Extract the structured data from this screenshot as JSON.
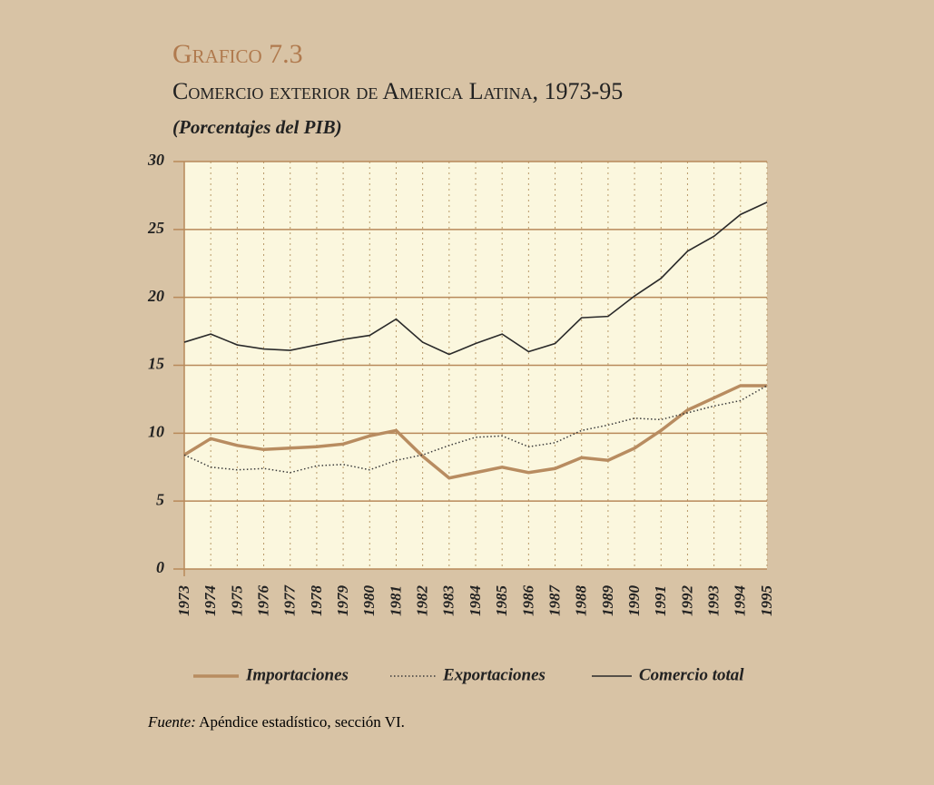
{
  "chart_data": {
    "type": "line",
    "title": "Grafico 7.3",
    "subtitle": "Comercio exterior de America Latina, 1973-95",
    "unit_note": "(Porcentajes del PIB)",
    "categories": [
      "1973",
      "1974",
      "1975",
      "1976",
      "1977",
      "1978",
      "1979",
      "1980",
      "1981",
      "1982",
      "1983",
      "1984",
      "1985",
      "1986",
      "1987",
      "1988",
      "1989",
      "1990",
      "1991",
      "1992",
      "1993",
      "1994",
      "1995"
    ],
    "series": [
      {
        "name": "Importaciones",
        "color": "#b88c60",
        "style": "solid-thick",
        "values": [
          8.4,
          9.6,
          9.1,
          8.8,
          8.9,
          9.0,
          9.2,
          9.8,
          10.2,
          8.3,
          6.7,
          7.1,
          7.5,
          7.1,
          7.4,
          8.2,
          8.0,
          8.9,
          10.2,
          11.7,
          12.6,
          13.5,
          13.5
        ]
      },
      {
        "name": "Exportaciones",
        "color": "#3a3a3a",
        "style": "dotted",
        "values": [
          8.4,
          7.5,
          7.3,
          7.4,
          7.1,
          7.6,
          7.7,
          7.3,
          8.0,
          8.4,
          9.1,
          9.7,
          9.8,
          9.0,
          9.3,
          10.2,
          10.6,
          11.1,
          11.0,
          11.5,
          12.0,
          12.4,
          13.5
        ]
      },
      {
        "name": "Comercio total",
        "color": "#2a2a2a",
        "style": "solid",
        "values": [
          16.7,
          17.3,
          16.5,
          16.2,
          16.1,
          16.5,
          16.9,
          17.2,
          18.4,
          16.7,
          15.8,
          16.6,
          17.3,
          16.0,
          16.6,
          18.5,
          18.6,
          20.1,
          21.4,
          23.4,
          24.5,
          26.1,
          27.0
        ]
      }
    ],
    "ylim": [
      0,
      30
    ],
    "yticks": [
      0,
      5,
      10,
      15,
      20,
      25,
      30
    ],
    "grid": true,
    "source_label": "Fuente:",
    "source_text": "Apéndice estadístico, sección VI."
  }
}
